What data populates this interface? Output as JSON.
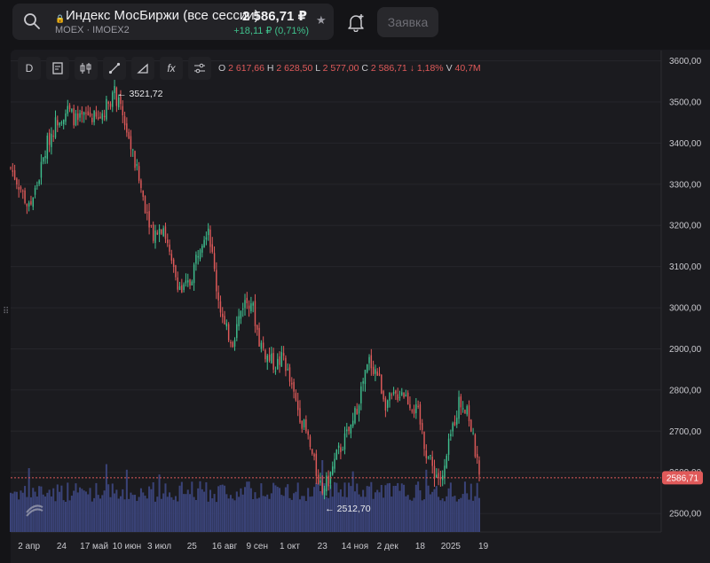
{
  "header": {
    "lock_glyph": "🔒",
    "instrument_name": "Индекс МосБиржи (все сессии)",
    "exchange_line": "MOEX · IMOEX2",
    "price": "2 586,71 ₽",
    "change": "+18,11 ₽ (0,71%)",
    "order_button": "Заявка"
  },
  "toolbar": {
    "interval": "D",
    "icons": [
      "indicator-icon",
      "candles-icon",
      "draw-line-icon",
      "draw-shapes-icon",
      "fx-icon",
      "settings-sliders-icon"
    ],
    "fx_glyph": "fx"
  },
  "ohlc": {
    "o_label": "O",
    "o_value": "2 617,66",
    "h_label": "H",
    "h_value": "2 628,50",
    "l_label": "L",
    "l_value": "2 577,00",
    "c_label": "C",
    "c_value": "2 586,71",
    "change_value": "↓ 1,18%",
    "v_label": "V",
    "v_value": "40,7M"
  },
  "chart_data": {
    "type": "candlestick",
    "price_axis": {
      "ticks": [
        2500,
        2600,
        2700,
        2800,
        2900,
        3000,
        3100,
        3200,
        3300,
        3400,
        3500,
        3600
      ],
      "tick_labels": [
        "2500,00",
        "2600,00",
        "2700,00",
        "2800,00",
        "2900,00",
        "3000,00",
        "3100,00",
        "3200,00",
        "3300,00",
        "3400,00",
        "3500,00",
        "3600,00"
      ],
      "ylim": [
        2455,
        3625
      ]
    },
    "x_axis": {
      "tick_labels": [
        "2 апр",
        "24",
        "17 май",
        "10 июн",
        "3 июл",
        "25",
        "16 авг",
        "9 сен",
        "1 окт",
        "23",
        "14 ноя",
        "2 дек",
        "18",
        "2025",
        "19"
      ],
      "bar_index_range": [
        0,
        230
      ],
      "tick_positions": [
        9,
        25,
        41,
        57,
        73,
        89,
        105,
        121,
        137,
        153,
        169,
        185,
        201,
        216,
        232
      ]
    },
    "last_price_label": "2586,71",
    "last_price": 2586.71,
    "annotations": [
      {
        "text": "← 3521,72",
        "value": 3521.72,
        "kind": "high"
      },
      {
        "text": "← 2512,70",
        "value": 2512.7,
        "kind": "low"
      }
    ],
    "path": [
      [
        0,
        3340
      ],
      [
        5,
        3290
      ],
      [
        9,
        3240
      ],
      [
        13,
        3300
      ],
      [
        18,
        3400
      ],
      [
        23,
        3460
      ],
      [
        28,
        3480
      ],
      [
        33,
        3450
      ],
      [
        38,
        3470
      ],
      [
        43,
        3455
      ],
      [
        48,
        3500
      ],
      [
        51,
        3521
      ],
      [
        56,
        3450
      ],
      [
        61,
        3350
      ],
      [
        66,
        3250
      ],
      [
        70,
        3180
      ],
      [
        75,
        3200
      ],
      [
        79,
        3100
      ],
      [
        84,
        3040
      ],
      [
        88,
        3060
      ],
      [
        93,
        3160
      ],
      [
        97,
        3200
      ],
      [
        101,
        3050
      ],
      [
        105,
        2950
      ],
      [
        109,
        2920
      ],
      [
        114,
        3010
      ],
      [
        118,
        3020
      ],
      [
        122,
        2920
      ],
      [
        126,
        2880
      ],
      [
        130,
        2860
      ],
      [
        134,
        2880
      ],
      [
        138,
        2800
      ],
      [
        142,
        2740
      ],
      [
        146,
        2680
      ],
      [
        150,
        2600
      ],
      [
        153,
        2560
      ],
      [
        156,
        2580
      ],
      [
        160,
        2640
      ],
      [
        164,
        2680
      ],
      [
        168,
        2720
      ],
      [
        172,
        2800
      ],
      [
        176,
        2870
      ],
      [
        180,
        2840
      ],
      [
        184,
        2770
      ],
      [
        188,
        2780
      ],
      [
        192,
        2800
      ],
      [
        196,
        2770
      ],
      [
        200,
        2740
      ],
      [
        204,
        2650
      ],
      [
        208,
        2600
      ],
      [
        212,
        2580
      ],
      [
        216,
        2690
      ],
      [
        220,
        2770
      ],
      [
        224,
        2760
      ],
      [
        228,
        2650
      ],
      [
        230,
        2586.71
      ]
    ],
    "volume": {
      "base": 48,
      "amplitude": 26,
      "spikes": [
        [
          9,
          80
        ],
        [
          47,
          85
        ],
        [
          57,
          78
        ],
        [
          73,
          72
        ],
        [
          153,
          90
        ],
        [
          168,
          76
        ],
        [
          204,
          78
        ]
      ]
    },
    "colors": {
      "up": "#3fbf8f",
      "down": "#e05a5a",
      "volume": "#3a4378",
      "grid": "#26262b",
      "last_price": "#e05a5a"
    }
  }
}
